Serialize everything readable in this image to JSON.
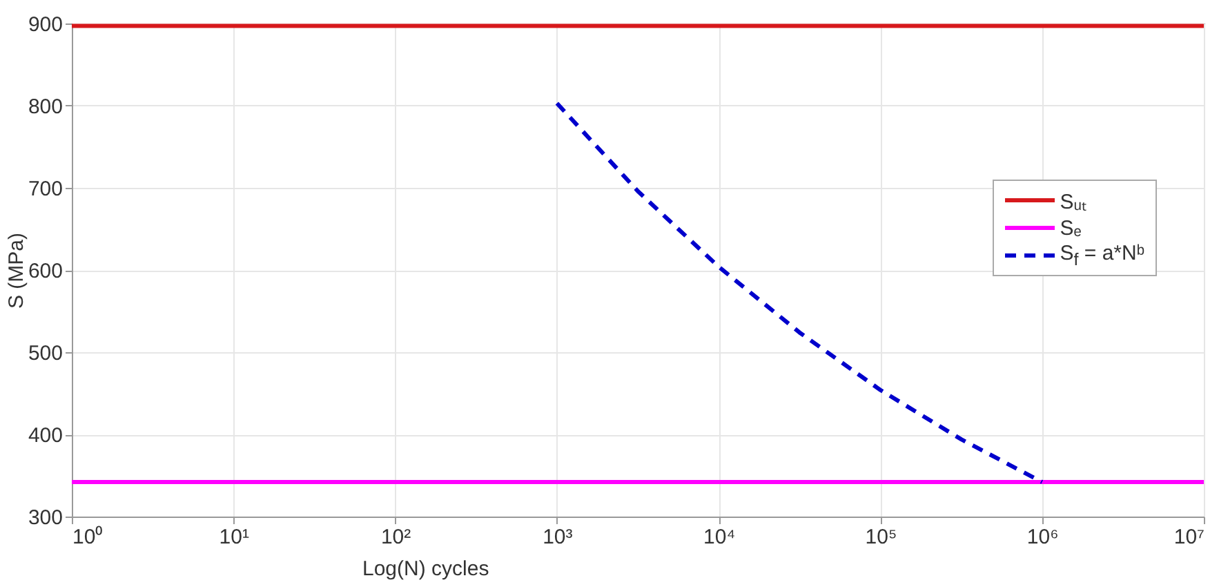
{
  "chart_data": {
    "type": "line",
    "xlabel": "Log(N) cycles",
    "ylabel": "S (MPa)",
    "log": "x",
    "grid": true,
    "legend": "right",
    "xlim": [
      1,
      10000000
    ],
    "xticks": [
      {
        "value": 1,
        "label": "10⁰"
      },
      {
        "value": 10,
        "label": "10¹"
      },
      {
        "value": 100,
        "label": "10²"
      },
      {
        "value": 1000,
        "label": "10³"
      },
      {
        "value": 10000,
        "label": "10⁴"
      },
      {
        "value": 100000,
        "label": "10⁵"
      },
      {
        "value": 1000000,
        "label": "10⁶"
      },
      {
        "value": 10000000,
        "label": "10⁷"
      }
    ],
    "ylim": [
      300,
      900
    ],
    "yticks": [
      300,
      400,
      500,
      600,
      700,
      800,
      900
    ],
    "series": [
      {
        "name": "Sᵤₜ",
        "color": "#d7191c",
        "x": [
          1,
          10000000
        ],
        "values": [
          897,
          897
        ]
      },
      {
        "name": "Sₑ",
        "color": "#ff00ff",
        "x": [
          1,
          10000000
        ],
        "values": [
          342,
          342
        ]
      },
      {
        "name": "S$_{f}$  =  a*Nᵇ",
        "color": "#0000cc",
        "line_style": "dashed",
        "x": [
          1000,
          3162,
          10000,
          31623,
          100000,
          316228,
          1000000
        ],
        "values": [
          803,
          696,
          604,
          524,
          454,
          394,
          342
        ]
      }
    ]
  }
}
